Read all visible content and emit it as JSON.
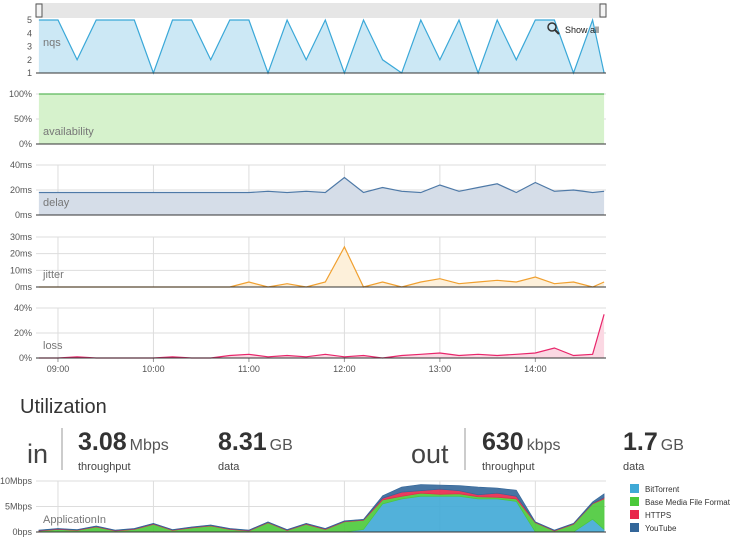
{
  "controls": {
    "show_all": "Show all"
  },
  "chart_data": [
    {
      "type": "area",
      "title": "nqs",
      "x": [
        8.8,
        9,
        9.2,
        9.4,
        9.6,
        9.8,
        10,
        10.2,
        10.4,
        10.6,
        10.8,
        11,
        11.2,
        11.4,
        11.6,
        11.8,
        12,
        12.2,
        12.4,
        12.6,
        12.8,
        13,
        13.2,
        13.4,
        13.6,
        13.8,
        14,
        14.2,
        14.4,
        14.6,
        14.72
      ],
      "values": [
        5,
        5,
        2,
        5,
        5,
        5,
        1,
        5,
        5,
        2,
        5,
        5,
        1,
        5,
        2,
        5,
        1,
        5,
        2,
        1,
        5,
        2,
        5,
        1,
        5,
        2,
        5,
        5,
        1,
        5,
        1
      ],
      "xlim": [
        8.77,
        14.74
      ],
      "ylim": [
        1,
        5
      ],
      "yticks": [
        1,
        2,
        3,
        4,
        5
      ],
      "color": "#3aa8d8",
      "fill": "#cce8f5",
      "grid": false,
      "navigator": true
    },
    {
      "type": "area",
      "title": "availability",
      "x": [
        8.8,
        9,
        9.2,
        9.4,
        9.6,
        9.8,
        10,
        10.2,
        10.4,
        10.6,
        10.8,
        11,
        11.2,
        11.4,
        11.6,
        11.8,
        12,
        12.2,
        12.4,
        12.6,
        12.8,
        13,
        13.2,
        13.4,
        13.6,
        13.8,
        14,
        14.2,
        14.4,
        14.6,
        14.72
      ],
      "values": [
        100,
        100,
        100,
        100,
        100,
        100,
        100,
        100,
        100,
        100,
        100,
        100,
        100,
        100,
        100,
        100,
        100,
        100,
        100,
        100,
        100,
        100,
        100,
        100,
        100,
        100,
        100,
        100,
        100,
        100,
        100
      ],
      "xlim": [
        8.77,
        14.74
      ],
      "ylim": [
        0,
        100
      ],
      "yticks": [
        {
          "value": 0,
          "label": "0%"
        },
        {
          "value": 50,
          "label": "50%"
        },
        {
          "value": 100,
          "label": "100%"
        }
      ],
      "color": "#5cb85c",
      "fill": "#d6f2cc",
      "grid": true
    },
    {
      "type": "area",
      "title": "delay",
      "x": [
        8.8,
        9,
        9.2,
        9.4,
        9.6,
        9.8,
        10,
        10.2,
        10.4,
        10.6,
        10.8,
        11,
        11.2,
        11.4,
        11.6,
        11.8,
        12,
        12.2,
        12.4,
        12.6,
        12.8,
        13,
        13.2,
        13.4,
        13.6,
        13.8,
        14,
        14.2,
        14.4,
        14.6,
        14.72
      ],
      "values": [
        18,
        18,
        18,
        18,
        18,
        18,
        18,
        18,
        18,
        18,
        18,
        18,
        19,
        18,
        19,
        18,
        30,
        18,
        22,
        19,
        18,
        24,
        19,
        22,
        25,
        18,
        26,
        19,
        20,
        18,
        19
      ],
      "xlim": [
        8.77,
        14.74
      ],
      "ylim": [
        0,
        40
      ],
      "yticks": [
        {
          "value": 0,
          "label": "0ms"
        },
        {
          "value": 20,
          "label": "20ms"
        },
        {
          "value": 40,
          "label": "40ms"
        }
      ],
      "color": "#4e79a7",
      "fill": "#d5dde8",
      "grid": true
    },
    {
      "type": "area",
      "title": "jitter",
      "x": [
        8.8,
        9,
        9.2,
        9.4,
        9.6,
        9.8,
        10,
        10.2,
        10.4,
        10.6,
        10.8,
        11,
        11.2,
        11.4,
        11.6,
        11.8,
        12,
        12.2,
        12.4,
        12.6,
        12.8,
        13,
        13.2,
        13.4,
        13.6,
        13.8,
        14,
        14.2,
        14.4,
        14.6,
        14.72
      ],
      "values": [
        0,
        0,
        0,
        0,
        0,
        0,
        0,
        0,
        0,
        0,
        0,
        3,
        0,
        2,
        0,
        3,
        24,
        0,
        3,
        0,
        3,
        5,
        2,
        3,
        4,
        3,
        6,
        2,
        3,
        0,
        3
      ],
      "xlim": [
        8.77,
        14.74
      ],
      "ylim": [
        0,
        30
      ],
      "yticks": [
        {
          "value": 0,
          "label": "0ms"
        },
        {
          "value": 10,
          "label": "10ms"
        },
        {
          "value": 20,
          "label": "20ms"
        },
        {
          "value": 30,
          "label": "30ms"
        }
      ],
      "color": "#f0a030",
      "fill": "#fdf0da",
      "grid": true
    },
    {
      "type": "area",
      "title": "loss",
      "x": [
        8.8,
        9,
        9.2,
        9.4,
        9.6,
        9.8,
        10,
        10.2,
        10.4,
        10.6,
        10.8,
        11,
        11.2,
        11.4,
        11.6,
        11.8,
        12,
        12.2,
        12.4,
        12.6,
        12.8,
        13,
        13.2,
        13.4,
        13.6,
        13.8,
        14,
        14.2,
        14.4,
        14.6,
        14.72
      ],
      "values": [
        0,
        0,
        1,
        0,
        0,
        0,
        0,
        1,
        0,
        0,
        2,
        3,
        1,
        2,
        1,
        3,
        1,
        2,
        0,
        2,
        3,
        4,
        2,
        3,
        2,
        3,
        4,
        8,
        2,
        3,
        35
      ],
      "xlim": [
        8.77,
        14.74
      ],
      "ylim": [
        0,
        40
      ],
      "yticks": [
        {
          "value": 0,
          "label": "0%"
        },
        {
          "value": 20,
          "label": "20%"
        },
        {
          "value": 40,
          "label": "40%"
        }
      ],
      "xticks": [
        {
          "value": 9,
          "label": "09:00"
        },
        {
          "value": 10,
          "label": "10:00"
        },
        {
          "value": 11,
          "label": "11:00"
        },
        {
          "value": 12,
          "label": "12:00"
        },
        {
          "value": 13,
          "label": "13:00"
        },
        {
          "value": 14,
          "label": "14:00"
        }
      ],
      "color": "#e8266b",
      "fill": "#fbd8e3",
      "grid": true
    },
    {
      "type": "stacked_area",
      "title": "ApplicationIn",
      "x": [
        8.8,
        9,
        9.2,
        9.4,
        9.6,
        9.8,
        10,
        10.2,
        10.4,
        10.6,
        10.8,
        11,
        11.2,
        11.4,
        11.6,
        11.8,
        12,
        12.2,
        12.4,
        12.6,
        12.8,
        13,
        13.2,
        13.4,
        13.6,
        13.8,
        14,
        14.2,
        14.4,
        14.6,
        14.72
      ],
      "series": [
        {
          "name": "BitTorrent",
          "color": "#3fa9d6",
          "values": [
            0,
            0,
            0,
            0,
            0,
            0,
            0,
            0,
            0,
            0,
            0,
            0,
            0,
            0,
            0,
            0,
            0,
            0.5,
            5.5,
            6.5,
            7,
            7,
            7,
            6.5,
            6.5,
            6,
            0,
            0,
            0,
            2.5,
            0.5
          ]
        },
        {
          "name": "Base Media File Format",
          "color": "#4ac93a",
          "values": [
            0.2,
            0.5,
            0.3,
            1,
            0.2,
            0.5,
            1.5,
            0.3,
            0.8,
            1.2,
            0.5,
            0.2,
            1.8,
            0.3,
            1.5,
            0.5,
            2,
            1.8,
            0.8,
            0.5,
            0.6,
            0.4,
            0.5,
            0.4,
            0.3,
            0.5,
            1.8,
            0.2,
            1.5,
            3,
            6
          ]
        },
        {
          "name": "HTTPS",
          "color": "#e8264c",
          "values": [
            0.1,
            0.1,
            0.1,
            0.1,
            0.1,
            0.1,
            0.1,
            0.1,
            0.1,
            0.1,
            0.1,
            0.1,
            0.1,
            0.1,
            0.1,
            0.1,
            0.1,
            0.1,
            0.3,
            0.8,
            0.5,
            1,
            0.6,
            0.4,
            0.8,
            0.5,
            0.1,
            0.1,
            0.1,
            0.1,
            0.2
          ]
        },
        {
          "name": "YouTube",
          "color": "#336699",
          "values": [
            0.1,
            0.1,
            0.1,
            0.1,
            0.1,
            0.1,
            0.1,
            0.1,
            0.1,
            0.1,
            0.1,
            0.1,
            0.1,
            0.1,
            0.1,
            0.1,
            0.1,
            0.1,
            0.5,
            1,
            1.2,
            0.8,
            1,
            1.5,
            1,
            1.2,
            0.1,
            0.1,
            0.1,
            0.3,
            0.8
          ]
        }
      ],
      "xlim": [
        8.77,
        14.74
      ],
      "ylim": [
        0,
        10
      ],
      "yticks": [
        {
          "value": 0,
          "label": "0bps"
        },
        {
          "value": 5,
          "label": "5Mbps"
        },
        {
          "value": 10,
          "label": "10Mbps"
        }
      ],
      "grid": true,
      "legend": "right"
    }
  ],
  "utilization": {
    "heading": "Utilization",
    "in": {
      "label": "in",
      "throughput": {
        "value": 3.08,
        "unit": "Mbps",
        "label": "throughput"
      },
      "data": {
        "value": 8.31,
        "unit": "GB",
        "label": "data"
      }
    },
    "out": {
      "label": "out",
      "throughput": {
        "value": 630,
        "unit": "kbps",
        "label": "throughput"
      },
      "data": {
        "value": 1.7,
        "unit": "GB",
        "label": "data"
      }
    }
  }
}
